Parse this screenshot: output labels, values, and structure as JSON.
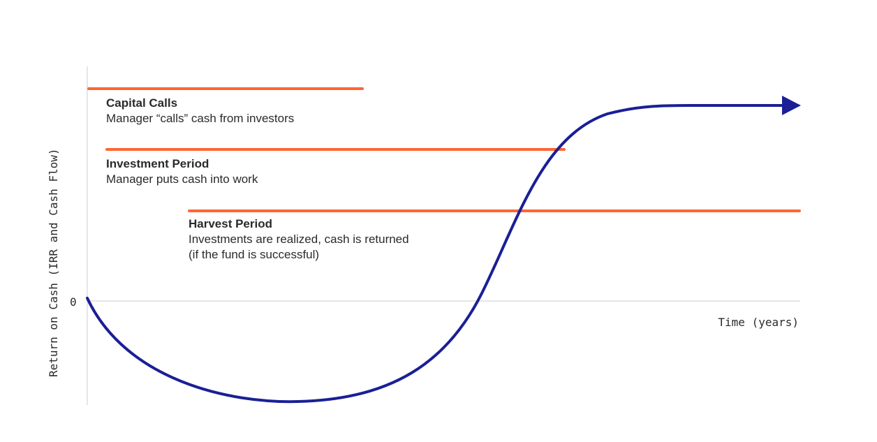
{
  "axes": {
    "y_label": "Return on Cash (IRR and Cash Flow)",
    "x_label": "Time (years)",
    "zero_tick": "0"
  },
  "phases": [
    {
      "title": "Capital Calls",
      "lines": [
        "Manager “calls” cash from investors"
      ]
    },
    {
      "title": "Investment Period",
      "lines": [
        "Manager puts cash into work"
      ]
    },
    {
      "title": "Harvest Period",
      "lines": [
        "Investments are realized, cash is returned",
        "(if the fund is successful)"
      ]
    }
  ],
  "colors": {
    "phase_bar": "#ff6633",
    "curve": "#1a1f96",
    "axis": "#e6e6e6",
    "text": "#2a2a2a"
  }
}
